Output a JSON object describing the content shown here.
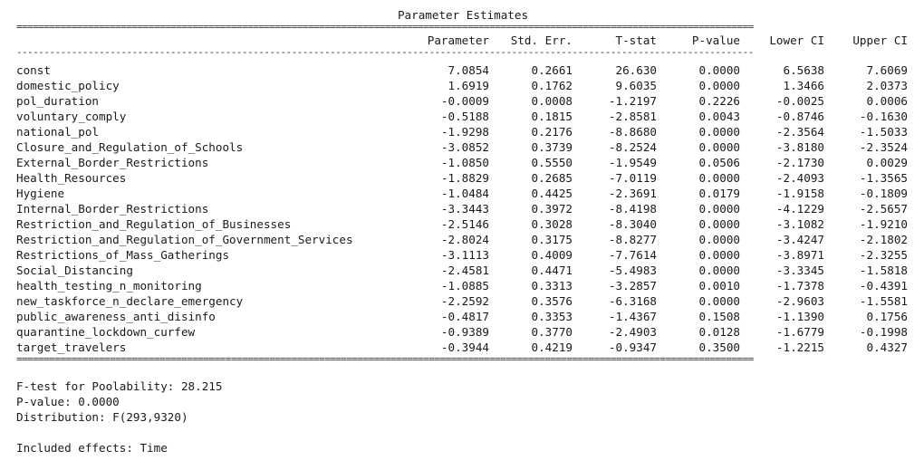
{
  "title": "Parameter Estimates",
  "rule_double": "======================================================================================================================================",
  "rule_single": "--------------------------------------------------------------------------------------------------------------------------------------",
  "columns": [
    "Parameter",
    "Std. Err.",
    "T-stat",
    "P-value",
    "Lower CI",
    "Upper CI"
  ],
  "rows": [
    {
      "name": "const",
      "param": "7.0854",
      "se": "0.2661",
      "t": "26.630",
      "p": "0.0000",
      "lo": "6.5638",
      "hi": "7.6069"
    },
    {
      "name": "domestic_policy",
      "param": "1.6919",
      "se": "0.1762",
      "t": "9.6035",
      "p": "0.0000",
      "lo": "1.3466",
      "hi": "2.0373"
    },
    {
      "name": "pol_duration",
      "param": "-0.0009",
      "se": "0.0008",
      "t": "-1.2197",
      "p": "0.2226",
      "lo": "-0.0025",
      "hi": "0.0006"
    },
    {
      "name": "voluntary_comply",
      "param": "-0.5188",
      "se": "0.1815",
      "t": "-2.8581",
      "p": "0.0043",
      "lo": "-0.8746",
      "hi": "-0.1630"
    },
    {
      "name": "national_pol",
      "param": "-1.9298",
      "se": "0.2176",
      "t": "-8.8680",
      "p": "0.0000",
      "lo": "-2.3564",
      "hi": "-1.5033"
    },
    {
      "name": "Closure_and_Regulation_of_Schools",
      "param": "-3.0852",
      "se": "0.3739",
      "t": "-8.2524",
      "p": "0.0000",
      "lo": "-3.8180",
      "hi": "-2.3524"
    },
    {
      "name": "External_Border_Restrictions",
      "param": "-1.0850",
      "se": "0.5550",
      "t": "-1.9549",
      "p": "0.0506",
      "lo": "-2.1730",
      "hi": "0.0029"
    },
    {
      "name": "Health_Resources",
      "param": "-1.8829",
      "se": "0.2685",
      "t": "-7.0119",
      "p": "0.0000",
      "lo": "-2.4093",
      "hi": "-1.3565"
    },
    {
      "name": "Hygiene",
      "param": "-1.0484",
      "se": "0.4425",
      "t": "-2.3691",
      "p": "0.0179",
      "lo": "-1.9158",
      "hi": "-0.1809"
    },
    {
      "name": "Internal_Border_Restrictions",
      "param": "-3.3443",
      "se": "0.3972",
      "t": "-8.4198",
      "p": "0.0000",
      "lo": "-4.1229",
      "hi": "-2.5657"
    },
    {
      "name": "Restriction_and_Regulation_of_Businesses",
      "param": "-2.5146",
      "se": "0.3028",
      "t": "-8.3040",
      "p": "0.0000",
      "lo": "-3.1082",
      "hi": "-1.9210"
    },
    {
      "name": "Restriction_and_Regulation_of_Government_Services",
      "param": "-2.8024",
      "se": "0.3175",
      "t": "-8.8277",
      "p": "0.0000",
      "lo": "-3.4247",
      "hi": "-2.1802"
    },
    {
      "name": "Restrictions_of_Mass_Gatherings",
      "param": "-3.1113",
      "se": "0.4009",
      "t": "-7.7614",
      "p": "0.0000",
      "lo": "-3.8971",
      "hi": "-2.3255"
    },
    {
      "name": "Social_Distancing",
      "param": "-2.4581",
      "se": "0.4471",
      "t": "-5.4983",
      "p": "0.0000",
      "lo": "-3.3345",
      "hi": "-1.5818"
    },
    {
      "name": "health_testing_n_monitoring",
      "param": "-1.0885",
      "se": "0.3313",
      "t": "-3.2857",
      "p": "0.0010",
      "lo": "-1.7378",
      "hi": "-0.4391"
    },
    {
      "name": "new_taskforce_n_declare_emergency",
      "param": "-2.2592",
      "se": "0.3576",
      "t": "-6.3168",
      "p": "0.0000",
      "lo": "-2.9603",
      "hi": "-1.5581"
    },
    {
      "name": "public_awareness_anti_disinfo",
      "param": "-0.4817",
      "se": "0.3353",
      "t": "-1.4367",
      "p": "0.1508",
      "lo": "-1.1390",
      "hi": "0.1756"
    },
    {
      "name": "quarantine_lockdown_curfew",
      "param": "-0.9389",
      "se": "0.3770",
      "t": "-2.4903",
      "p": "0.0128",
      "lo": "-1.6779",
      "hi": "-0.1998"
    },
    {
      "name": "target_travelers",
      "param": "-0.3944",
      "se": "0.4219",
      "t": "-0.9347",
      "p": "0.3500",
      "lo": "-1.2215",
      "hi": "0.4327"
    }
  ],
  "footer": {
    "ftest": "F-test for Poolability: 28.215",
    "pvalue": "P-value: 0.0000",
    "distribution": "Distribution: F(293,9320)",
    "effects": "Included effects: Time"
  }
}
